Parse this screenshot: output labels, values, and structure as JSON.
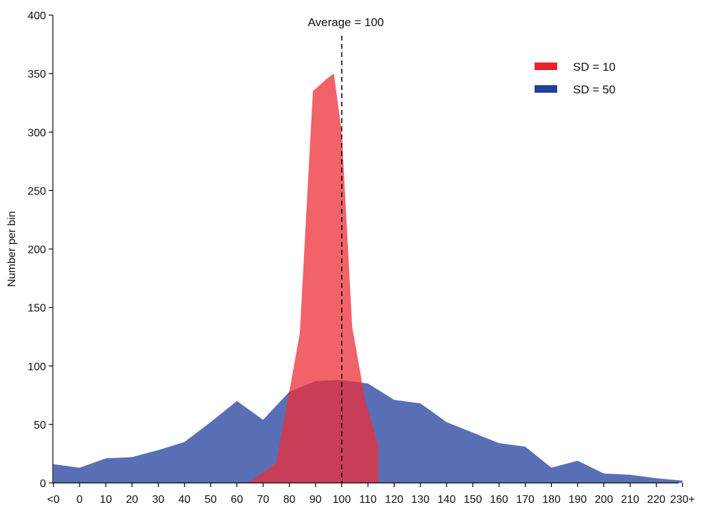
{
  "chart_data": {
    "type": "area",
    "title": "",
    "xlabel": "",
    "ylabel": "Number per bin",
    "ylim": [
      0,
      400
    ],
    "yticks": [
      0,
      50,
      100,
      150,
      200,
      250,
      300,
      350,
      400
    ],
    "categories": [
      "<0",
      "0",
      "10",
      "20",
      "30",
      "40",
      "50",
      "60",
      "70",
      "80",
      "90",
      "100",
      "110",
      "120",
      "130",
      "140",
      "150",
      "160",
      "170",
      "180",
      "190",
      "200",
      "210",
      "220",
      "230+"
    ],
    "series": [
      {
        "name": "SD = 50",
        "color": "#2f4ba3",
        "opacity": 0.8,
        "points": [
          [
            -1,
            16
          ],
          [
            0,
            13
          ],
          [
            1,
            21
          ],
          [
            2,
            22
          ],
          [
            3,
            28
          ],
          [
            4,
            35
          ],
          [
            5,
            52
          ],
          [
            6,
            70
          ],
          [
            7,
            54
          ],
          [
            8,
            78
          ],
          [
            9,
            87
          ],
          [
            10,
            88
          ],
          [
            11,
            85
          ],
          [
            12,
            71
          ],
          [
            13,
            68
          ],
          [
            14,
            52
          ],
          [
            15,
            43
          ],
          [
            16,
            34
          ],
          [
            17,
            31
          ],
          [
            18,
            13
          ],
          [
            19,
            19
          ],
          [
            20,
            8
          ],
          [
            21,
            7
          ],
          [
            22,
            4
          ],
          [
            23,
            2
          ]
        ]
      },
      {
        "name": "SD = 10",
        "color": "#ee2e37",
        "opacity": 0.75,
        "points": [
          [
            6.2,
            0
          ],
          [
            6.5,
            1
          ],
          [
            7.5,
            17
          ],
          [
            8.0,
            78
          ],
          [
            8.4,
            128
          ],
          [
            8.9,
            335
          ],
          [
            9.4,
            345
          ],
          [
            9.7,
            350
          ],
          [
            10.0,
            300
          ],
          [
            10.4,
            133
          ],
          [
            10.9,
            70
          ],
          [
            11.4,
            32
          ],
          [
            11.4,
            0
          ]
        ]
      }
    ],
    "annotation": {
      "label": "Average = 100",
      "x_value": 10
    },
    "legend": {
      "position": "top-right",
      "entries": [
        {
          "label": "SD = 10",
          "color": "#e8232c"
        },
        {
          "label": "SD = 50",
          "color": "#21409a"
        }
      ]
    },
    "grid": false
  }
}
